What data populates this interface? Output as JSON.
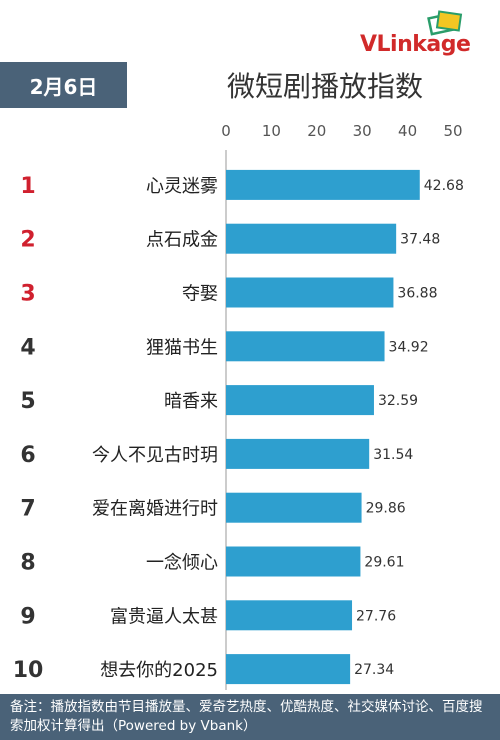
{
  "header": {
    "date": "2月6日",
    "title": "微短剧播放指数",
    "logo": "VLinkage"
  },
  "colors": {
    "bar": "#2e9fcf",
    "rank_top": "#d0202e",
    "rank_other": "#333333",
    "header_bg": "#4a6278"
  },
  "chart_data": {
    "type": "bar",
    "orientation": "horizontal",
    "title": "微短剧播放指数",
    "xlim": [
      0,
      50
    ],
    "xticks": [
      0,
      10,
      20,
      30,
      40,
      50
    ],
    "axis_position": "top",
    "grid": false,
    "ranks": [
      "1",
      "2",
      "3",
      "4",
      "5",
      "6",
      "7",
      "8",
      "9",
      "10"
    ],
    "categories": [
      "心灵迷雾",
      "点石成金",
      "夺娶",
      "狸猫书生",
      "暗香来",
      "今人不见古时玥",
      "爱在离婚进行时",
      "一念倾心",
      "富贵逼人太甚",
      "想去你的2025"
    ],
    "values": [
      42.68,
      37.48,
      36.88,
      34.92,
      32.59,
      31.54,
      29.86,
      29.61,
      27.76,
      27.34
    ],
    "value_labels": [
      "42.68",
      "37.48",
      "36.88",
      "34.92",
      "32.59",
      "31.54",
      "29.86",
      "29.61",
      "27.76",
      "27.34"
    ]
  },
  "footer": {
    "note": "备注：播放指数由节目播放量、爱奇艺热度、优酷热度、社交媒体讨论、百度搜索加权计算得出（Powered by Vbank）"
  }
}
